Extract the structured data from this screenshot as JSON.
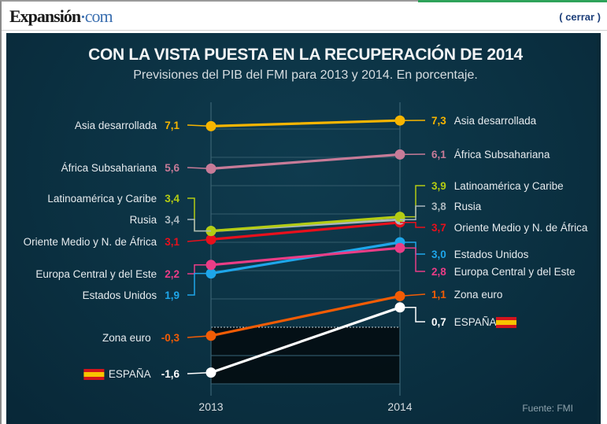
{
  "header": {
    "logo_main": "Expansión",
    "logo_dot": "·",
    "logo_com": "com",
    "close_label": "( cerrar )"
  },
  "colors": {
    "panel_bg": "#0b3142",
    "gridline": "#2d5566",
    "negative_zone": "#030a0e"
  },
  "chart_data": {
    "type": "line",
    "title": "CON LA VISTA PUESTA EN LA RECUPERACIÓN DE 2014",
    "subtitle": "Previsiones del PIB del FMI para 2013 y 2014. En porcentaje.",
    "x": [
      "2013",
      "2014"
    ],
    "xlabel": "",
    "ylabel": "",
    "ylim": [
      -2,
      7.5
    ],
    "grid": true,
    "gridlines": [
      -2,
      -1,
      0,
      1,
      2,
      3,
      4,
      5,
      6,
      7
    ],
    "zero_line_style": "dotted",
    "negative_area_shaded": true,
    "source": "Fuente: FMI",
    "series": [
      {
        "name": "Asia desarrollada",
        "values": [
          7.1,
          7.3
        ],
        "labels": [
          "7,1",
          "7,3"
        ],
        "color": "#f7b500"
      },
      {
        "name": "África Subsahariana",
        "values": [
          5.6,
          6.1
        ],
        "labels": [
          "5,6",
          "6,1"
        ],
        "color": "#c77b98"
      },
      {
        "name": "Latinoamérica y Caribe",
        "values": [
          3.4,
          3.9
        ],
        "labels": [
          "3,4",
          "3,9"
        ],
        "color": "#b4cc13"
      },
      {
        "name": "Rusia",
        "values": [
          3.4,
          3.8
        ],
        "labels": [
          "3,4",
          "3,8"
        ],
        "color": "#a9b6bd"
      },
      {
        "name": "Oriente Medio y N. de África",
        "values": [
          3.1,
          3.7
        ],
        "labels": [
          "3,1",
          "3,7"
        ],
        "color": "#e8101c"
      },
      {
        "name": "Europa Central y del Este",
        "values": [
          2.2,
          2.8
        ],
        "labels": [
          "2,2",
          "2,8"
        ],
        "color": "#ea3d86"
      },
      {
        "name": "Estados Unidos",
        "values": [
          1.9,
          3.0
        ],
        "labels": [
          "1,9",
          "3,0"
        ],
        "color": "#1ea6ea"
      },
      {
        "name": "Zona euro",
        "values": [
          -0.3,
          1.1
        ],
        "labels": [
          "-0,3",
          "1,1"
        ],
        "color": "#f25c05"
      },
      {
        "name": "ESPAÑA",
        "values": [
          -1.6,
          0.7
        ],
        "labels": [
          "-1,6",
          "0,7"
        ],
        "color": "#ffffff",
        "flag": "spain-flag"
      }
    ],
    "left_label_order": [
      "Asia desarrollada",
      "África Subsahariana",
      "Latinoamérica y Caribe",
      "Rusia",
      "Oriente Medio y N. de África",
      "Europa Central y del Este",
      "Estados Unidos",
      "Zona euro",
      "ESPAÑA"
    ],
    "right_label_order": [
      "Asia desarrollada",
      "África Subsahariana",
      "Latinoamérica y Caribe",
      "Rusia",
      "Oriente Medio y N. de África",
      "Estados Unidos",
      "Europa Central y del Este",
      "Zona euro",
      "ESPAÑA"
    ]
  }
}
